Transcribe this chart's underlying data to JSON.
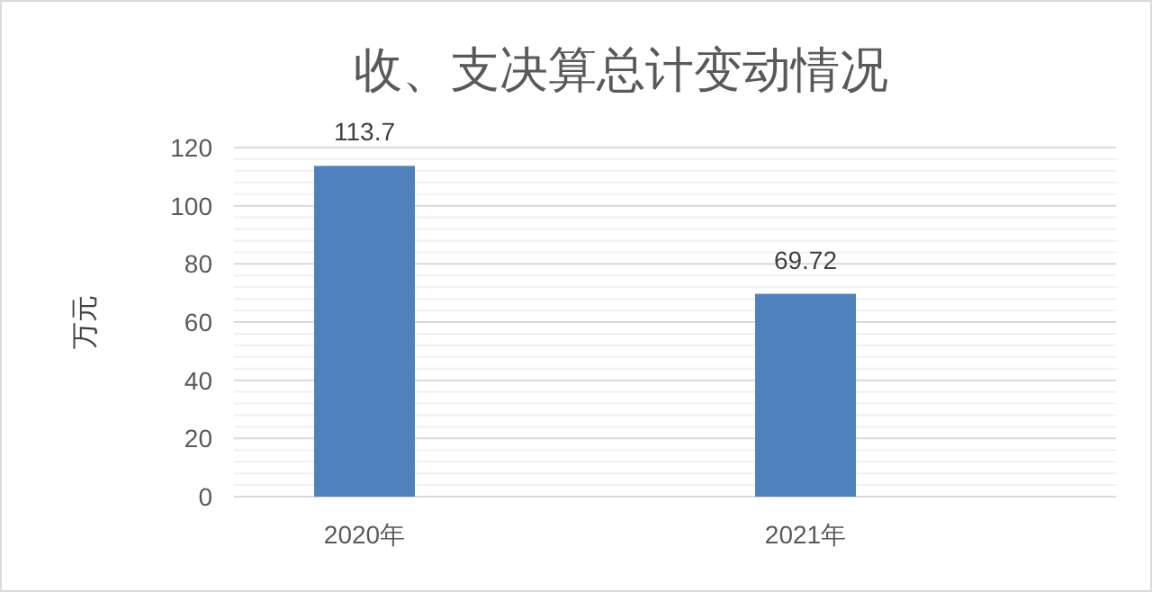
{
  "chart_data": {
    "type": "bar",
    "title": "收、支决算总计变动情况",
    "ylabel": "万元",
    "categories": [
      "2020年",
      "2021年"
    ],
    "values": [
      113.7,
      69.72
    ],
    "color": "#4f81bd",
    "ylim": [
      0,
      120
    ],
    "yticks": [
      0,
      20,
      40,
      60,
      80,
      100,
      120
    ],
    "grid": "y",
    "data_labels": true
  }
}
